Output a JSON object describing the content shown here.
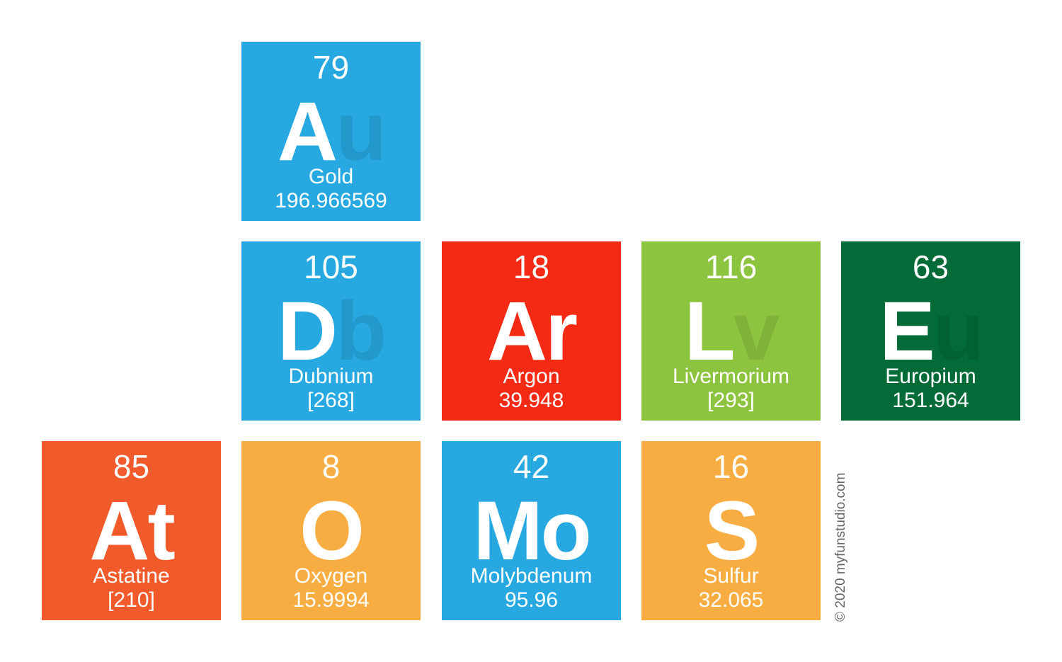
{
  "tiles": [
    {
      "number": "79",
      "symbol": [
        "A",
        "u"
      ],
      "name": "Gold",
      "mass": "196.966569",
      "color": "#27a8e0"
    },
    {
      "number": "105",
      "symbol": [
        "D",
        "b"
      ],
      "name": "Dubnium",
      "mass": "[268]",
      "color": "#27a8e0"
    },
    {
      "number": "18",
      "symbol": [
        "Ar"
      ],
      "name": "Argon",
      "mass": "39.948",
      "color": "#f52a14"
    },
    {
      "number": "116",
      "symbol": [
        "L",
        "v"
      ],
      "name": "Livermorium",
      "mass": "[293]",
      "color": "#8dc43f"
    },
    {
      "number": "63",
      "symbol": [
        "E",
        "u"
      ],
      "name": "Europium",
      "mass": "151.964",
      "color": "#036b38"
    },
    {
      "number": "85",
      "symbol": [
        "At"
      ],
      "name": "Astatine",
      "mass": "[210]",
      "color": "#f15a2b"
    },
    {
      "number": "8",
      "symbol": [
        "O"
      ],
      "name": "Oxygen",
      "mass": "15.9994",
      "color": "#f8ad42"
    },
    {
      "number": "42",
      "symbol": [
        "Mo"
      ],
      "name": "Molybdenum",
      "mass": "95.96",
      "color": "#27a8e0"
    },
    {
      "number": "16",
      "symbol": [
        "S"
      ],
      "name": "Sulfur",
      "mass": "32.065",
      "color": "#f8ad42"
    }
  ],
  "copyright": "© 2020 myfunstudio.com"
}
